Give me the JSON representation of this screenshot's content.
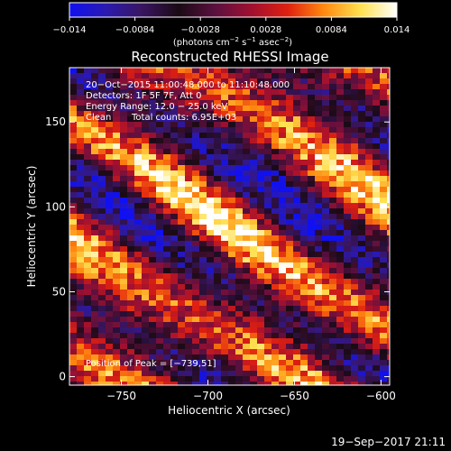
{
  "chart_data": {
    "type": "heatmap",
    "title": "Reconstructed RHESSI Image",
    "xlabel": "Heliocentric X (arcsec)",
    "ylabel": "Heliocentric Y (arcsec)",
    "xlim": [
      -780,
      -595
    ],
    "ylim": [
      -5,
      182
    ],
    "x_ticks": [
      -750,
      -700,
      -650,
      -600
    ],
    "x_tick_labels": [
      "−750",
      "−700",
      "−650",
      "−600"
    ],
    "y_ticks": [
      0,
      50,
      100,
      150
    ],
    "y_tick_labels": [
      "0",
      "50",
      "100",
      "150"
    ],
    "colorbar": {
      "range": [
        -0.014,
        0.014
      ],
      "ticks": [
        -0.014,
        -0.0084,
        -0.0028,
        0.0028,
        0.0084,
        0.014
      ],
      "tick_labels": [
        "−0.014",
        "−0.0084",
        "−0.0028",
        "0.0028",
        "0.0084",
        "0.014"
      ],
      "unit_main": "(photons cm",
      "unit_exp1": "−2",
      "unit_mid": " s",
      "unit_exp2": "−1",
      "unit_end": " asec",
      "unit_exp3": "−2",
      "unit_close": ")",
      "colors": [
        "#1010f0",
        "#2a1ab0",
        "#3a1560",
        "#1a0a14",
        "#5a1040",
        "#a01030",
        "#e02010",
        "#ff8a10",
        "#ffe050",
        "#ffffff"
      ]
    },
    "peak_marker": {
      "x": -739,
      "y": 51
    },
    "grid": false
  },
  "annotations": {
    "line1": "20−Oct−2015 11:00:48.000 to 11:10:48.000",
    "line2": "Detectors: 1F 5F 7F, Att 0",
    "line3": "Energy Range: 12.0 − 25.0 keV",
    "line4_method": "Clean",
    "line4_counts": "Total counts: 6.95E+03",
    "peak": "Position of Peak = [−739,51]"
  },
  "footer": {
    "timestamp": "19−Sep−2017 21:11"
  }
}
